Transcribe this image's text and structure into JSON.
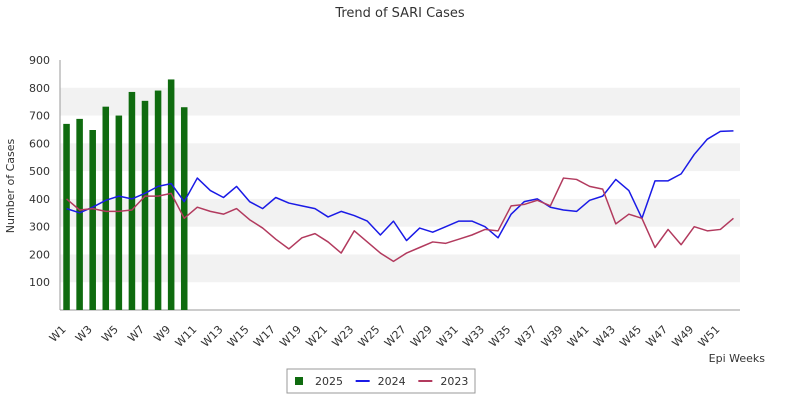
{
  "chart_data": {
    "type": "bar+line",
    "title": "Trend of SARI Cases",
    "xlabel": "Epi Weeks",
    "ylabel": "Number of Cases",
    "ylim": [
      0,
      900
    ],
    "yticks": [
      100,
      200,
      300,
      400,
      500,
      600,
      700,
      800,
      900
    ],
    "grid": "alternating horizontal bands",
    "legend_position": "bottom-center",
    "x_tick_labels": [
      "W1",
      "W3",
      "W5",
      "W7",
      "W9",
      "W11",
      "W13",
      "W15",
      "W17",
      "W19",
      "W21",
      "W23",
      "W25",
      "W27",
      "W29",
      "W31",
      "W33",
      "W35",
      "W37",
      "W39",
      "W41",
      "W43",
      "W45",
      "W47",
      "W49",
      "W51"
    ],
    "weeks": 52,
    "series": [
      {
        "name": "2025",
        "kind": "bar",
        "color": "#0f6b0f",
        "values": [
          670,
          688,
          648,
          732,
          700,
          785,
          753,
          790,
          830,
          730
        ]
      },
      {
        "name": "2024",
        "kind": "line",
        "color": "#1a1ae6",
        "values": [
          365,
          350,
          370,
          395,
          410,
          400,
          420,
          445,
          455,
          390,
          475,
          430,
          405,
          445,
          390,
          365,
          405,
          385,
          375,
          365,
          335,
          355,
          340,
          320,
          270,
          320,
          250,
          295,
          280,
          300,
          320,
          320,
          300,
          260,
          345,
          390,
          400,
          370,
          360,
          355,
          395,
          410,
          470,
          430,
          330,
          465,
          465,
          490,
          560,
          615,
          643,
          645
        ]
      },
      {
        "name": "2023",
        "kind": "line",
        "color": "#b23a5e",
        "values": [
          400,
          360,
          365,
          355,
          355,
          360,
          410,
          410,
          420,
          330,
          370,
          355,
          345,
          365,
          325,
          295,
          255,
          220,
          260,
          275,
          245,
          205,
          285,
          245,
          205,
          175,
          205,
          225,
          245,
          240,
          255,
          270,
          290,
          285,
          375,
          380,
          395,
          375,
          475,
          470,
          445,
          435,
          310,
          345,
          330,
          225,
          290,
          235,
          300,
          285,
          290,
          330
        ]
      }
    ]
  }
}
